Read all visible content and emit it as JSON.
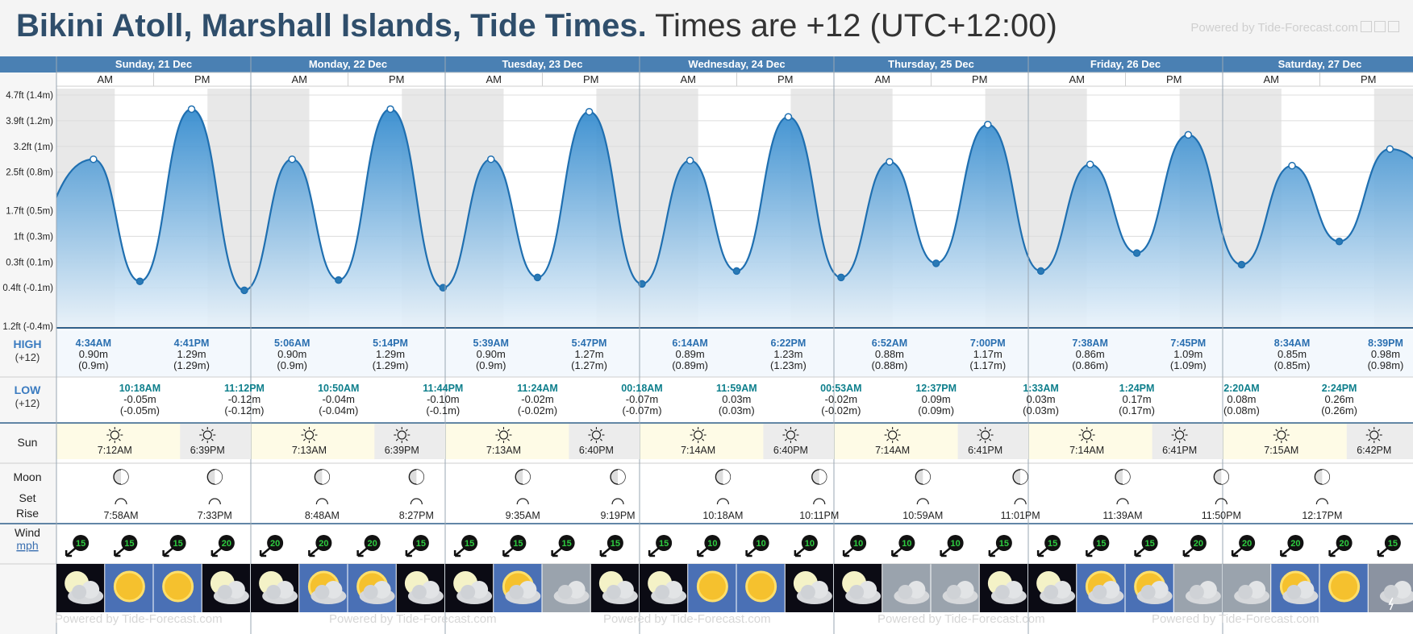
{
  "header": {
    "title": "Bikini Atoll, Marshall Islands, Tide Times.",
    "subtitle": "Times are +12 (UTC+12:00)",
    "powered": "Powered by Tide-Forecast.com"
  },
  "row_labels": {
    "high": "HIGH",
    "high_tz": "(+12)",
    "low": "LOW",
    "low_tz": "(+12)",
    "sun": "Sun",
    "moon": "Moon",
    "set": "Set",
    "rise": "Rise",
    "wind": "Wind",
    "wind_unit": "mph"
  },
  "ampm": [
    "AM",
    "PM"
  ],
  "days": [
    "Sunday, 21 Dec",
    "Monday, 22 Dec",
    "Tuesday, 23 Dec",
    "Wednesday, 24 Dec",
    "Thursday, 25 Dec",
    "Friday, 26 Dec",
    "Saturday, 27 Dec"
  ],
  "colors": {
    "day_header": "#4a80b3",
    "high_label": "#3a7bc0",
    "low_label": "#3a7bc0",
    "high_time": "#2a6fb0",
    "low_time": "#0e7f8c",
    "water_top": "#2b86cc",
    "water_bottom": "#e8f2fa",
    "night": "#e8e8e8",
    "sun_row": "#fefbe6",
    "wind_text": "#2ecc40"
  },
  "chart_data": {
    "type": "area",
    "title": "",
    "ylabel": "",
    "yticks": [
      "1.2ft (-0.4m)",
      "0.4ft (-0.1m)",
      "0.3ft (0.1m)",
      "1ft (0.3m)",
      "1.7ft (0.5m)",
      "2.5ft (0.8m)",
      "3.2ft (1m)",
      "3.9ft (1.2m)",
      "4.7ft (1.4m)"
    ],
    "ytick_values_m": [
      -0.4,
      -0.1,
      0.1,
      0.3,
      0.5,
      0.8,
      1.0,
      1.2,
      1.4
    ],
    "ylim_m": [
      -0.4,
      1.45
    ],
    "tides": [
      {
        "day": 0,
        "type": "high",
        "time": "4:34AM",
        "m": "0.90m",
        "paren": "(0.9m)",
        "v": 0.9
      },
      {
        "day": 0,
        "type": "low",
        "time": "10:18AM",
        "m": "-0.05m",
        "paren": "(-0.05m)",
        "v": -0.05
      },
      {
        "day": 0,
        "type": "high",
        "time": "4:41PM",
        "m": "1.29m",
        "paren": "(1.29m)",
        "v": 1.29
      },
      {
        "day": 0,
        "type": "low",
        "time": "11:12PM",
        "m": "-0.12m",
        "paren": "(-0.12m)",
        "v": -0.12
      },
      {
        "day": 1,
        "type": "high",
        "time": "5:06AM",
        "m": "0.90m",
        "paren": "(0.9m)",
        "v": 0.9
      },
      {
        "day": 1,
        "type": "low",
        "time": "10:50AM",
        "m": "-0.04m",
        "paren": "(-0.04m)",
        "v": -0.04
      },
      {
        "day": 1,
        "type": "high",
        "time": "5:14PM",
        "m": "1.29m",
        "paren": "(1.29m)",
        "v": 1.29
      },
      {
        "day": 1,
        "type": "low",
        "time": "11:44PM",
        "m": "-0.10m",
        "paren": "(-0.1m)",
        "v": -0.1
      },
      {
        "day": 2,
        "type": "high",
        "time": "5:39AM",
        "m": "0.90m",
        "paren": "(0.9m)",
        "v": 0.9
      },
      {
        "day": 2,
        "type": "low",
        "time": "11:24AM",
        "m": "-0.02m",
        "paren": "(-0.02m)",
        "v": -0.02
      },
      {
        "day": 2,
        "type": "high",
        "time": "5:47PM",
        "m": "1.27m",
        "paren": "(1.27m)",
        "v": 1.27
      },
      {
        "day": 3,
        "type": "low",
        "time": "00:18AM",
        "m": "-0.07m",
        "paren": "(-0.07m)",
        "v": -0.07
      },
      {
        "day": 3,
        "type": "high",
        "time": "6:14AM",
        "m": "0.89m",
        "paren": "(0.89m)",
        "v": 0.89
      },
      {
        "day": 3,
        "type": "low",
        "time": "11:59AM",
        "m": "0.03m",
        "paren": "(0.03m)",
        "v": 0.03
      },
      {
        "day": 3,
        "type": "high",
        "time": "6:22PM",
        "m": "1.23m",
        "paren": "(1.23m)",
        "v": 1.23
      },
      {
        "day": 4,
        "type": "low",
        "time": "00:53AM",
        "m": "-0.02m",
        "paren": "(-0.02m)",
        "v": -0.02
      },
      {
        "day": 4,
        "type": "high",
        "time": "6:52AM",
        "m": "0.88m",
        "paren": "(0.88m)",
        "v": 0.88
      },
      {
        "day": 4,
        "type": "low",
        "time": "12:37PM",
        "m": "0.09m",
        "paren": "(0.09m)",
        "v": 0.09
      },
      {
        "day": 4,
        "type": "high",
        "time": "7:00PM",
        "m": "1.17m",
        "paren": "(1.17m)",
        "v": 1.17
      },
      {
        "day": 5,
        "type": "low",
        "time": "1:33AM",
        "m": "0.03m",
        "paren": "(0.03m)",
        "v": 0.03
      },
      {
        "day": 5,
        "type": "high",
        "time": "7:38AM",
        "m": "0.86m",
        "paren": "(0.86m)",
        "v": 0.86
      },
      {
        "day": 5,
        "type": "low",
        "time": "1:24PM",
        "m": "0.17m",
        "paren": "(0.17m)",
        "v": 0.17
      },
      {
        "day": 5,
        "type": "high",
        "time": "7:45PM",
        "m": "1.09m",
        "paren": "(1.09m)",
        "v": 1.09
      },
      {
        "day": 6,
        "type": "low",
        "time": "2:20AM",
        "m": "0.08m",
        "paren": "(0.08m)",
        "v": 0.08
      },
      {
        "day": 6,
        "type": "high",
        "time": "8:34AM",
        "m": "0.85m",
        "paren": "(0.85m)",
        "v": 0.85
      },
      {
        "day": 6,
        "type": "low",
        "time": "2:24PM",
        "m": "0.26m",
        "paren": "(0.26m)",
        "v": 0.26
      },
      {
        "day": 6,
        "type": "high",
        "time": "8:39PM",
        "m": "0.98m",
        "paren": "(0.98m)",
        "v": 0.98
      }
    ],
    "sun": [
      {
        "day": 0,
        "rise": "7:12AM",
        "set": "6:39PM"
      },
      {
        "day": 1,
        "rise": "7:13AM",
        "set": "6:39PM"
      },
      {
        "day": 2,
        "rise": "7:13AM",
        "set": "6:40PM"
      },
      {
        "day": 3,
        "rise": "7:14AM",
        "set": "6:40PM"
      },
      {
        "day": 4,
        "rise": "7:14AM",
        "set": "6:41PM"
      },
      {
        "day": 5,
        "rise": "7:14AM",
        "set": "6:41PM"
      },
      {
        "day": 6,
        "rise": "7:15AM",
        "set": "6:42PM"
      }
    ],
    "moon": [
      {
        "day": 0,
        "set": "7:58AM",
        "rise": "7:33PM"
      },
      {
        "day": 1,
        "set": "8:48AM",
        "rise": "8:27PM"
      },
      {
        "day": 2,
        "set": "9:35AM",
        "rise": "9:19PM"
      },
      {
        "day": 3,
        "set": "10:18AM",
        "rise": "10:11PM"
      },
      {
        "day": 4,
        "set": "10:59AM",
        "rise": "11:01PM"
      },
      {
        "day": 5,
        "set": "11:39AM",
        "rise": "11:50PM"
      },
      {
        "day": 6,
        "set": "12:17PM",
        "rise": ""
      }
    ],
    "wind": [
      15,
      15,
      15,
      20,
      20,
      20,
      20,
      15,
      15,
      15,
      15,
      15,
      15,
      10,
      10,
      10,
      10,
      10,
      10,
      15,
      15,
      15,
      15,
      20,
      20,
      20,
      20,
      15
    ],
    "weather": [
      "cloudy-night",
      "sunny",
      "sunny",
      "cloudy-night",
      "cloudy-night",
      "partly-cloudy",
      "partly-cloudy",
      "cloudy-night",
      "cloudy-night",
      "partly-cloudy",
      "cloudy",
      "cloudy-night",
      "cloudy-night",
      "sunny",
      "sunny",
      "cloudy-night",
      "cloudy-night",
      "cloudy",
      "cloudy",
      "cloudy-night",
      "cloudy-night",
      "partly-cloudy",
      "partly-cloudy",
      "cloudy",
      "cloudy",
      "partly-cloudy",
      "sunny",
      "storm"
    ]
  }
}
